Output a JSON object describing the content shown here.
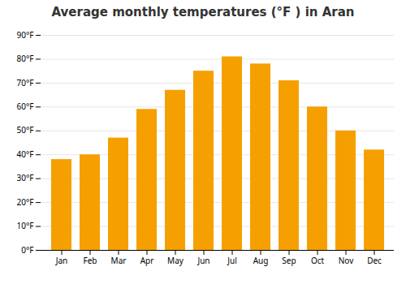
{
  "chart_data": {
    "type": "bar",
    "title": "Average monthly temperatures (°F ) in Aran",
    "categories": [
      "Jan",
      "Feb",
      "Mar",
      "Apr",
      "May",
      "Jun",
      "Jul",
      "Aug",
      "Sep",
      "Oct",
      "Nov",
      "Dec"
    ],
    "values": [
      38,
      40,
      47,
      59,
      67,
      75,
      81,
      78,
      71,
      60,
      50,
      42
    ],
    "color": "#F5A000",
    "ylim": [
      0,
      90
    ],
    "yticks": [
      {
        "value": 0,
        "label": "0°F"
      },
      {
        "value": 10,
        "label": "10°F"
      },
      {
        "value": 20,
        "label": "20°F"
      },
      {
        "value": 30,
        "label": "30°F"
      },
      {
        "value": 40,
        "label": "40°F"
      },
      {
        "value": 50,
        "label": "50°F"
      },
      {
        "value": 60,
        "label": "60°F"
      },
      {
        "value": 70,
        "label": "70°F"
      },
      {
        "value": 80,
        "label": "80°F"
      },
      {
        "value": 90,
        "label": "90°F"
      }
    ],
    "grid": true
  }
}
